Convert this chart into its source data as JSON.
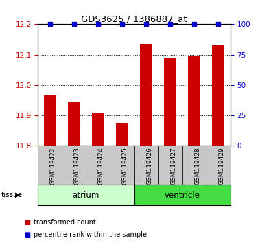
{
  "title": "GDS3625 / 1386887_at",
  "samples": [
    "GSM119422",
    "GSM119423",
    "GSM119424",
    "GSM119425",
    "GSM119426",
    "GSM119427",
    "GSM119428",
    "GSM119429"
  ],
  "red_values": [
    11.965,
    11.945,
    11.91,
    11.875,
    12.135,
    12.09,
    12.095,
    12.13
  ],
  "blue_values": [
    100,
    100,
    100,
    100,
    100,
    100,
    100,
    100
  ],
  "ylim_left": [
    11.8,
    12.2
  ],
  "ylim_right": [
    0,
    100
  ],
  "yticks_left": [
    11.8,
    11.9,
    12.0,
    12.1,
    12.2
  ],
  "yticks_right": [
    0,
    25,
    50,
    75,
    100
  ],
  "groups": [
    {
      "label": "atrium",
      "start": 0,
      "end": 4,
      "color": "#CCFFCC"
    },
    {
      "label": "ventricle",
      "start": 4,
      "end": 8,
      "color": "#44DD44"
    }
  ],
  "tissue_label": "tissue",
  "bar_color_red": "#CC0000",
  "bar_color_blue": "#0000CC",
  "bar_width": 0.5,
  "left_tick_color": "#CC0000",
  "right_tick_color": "#0000CC",
  "legend_items": [
    {
      "color": "#CC0000",
      "label": "transformed count"
    },
    {
      "color": "#0000CC",
      "label": "percentile rank within the sample"
    }
  ]
}
